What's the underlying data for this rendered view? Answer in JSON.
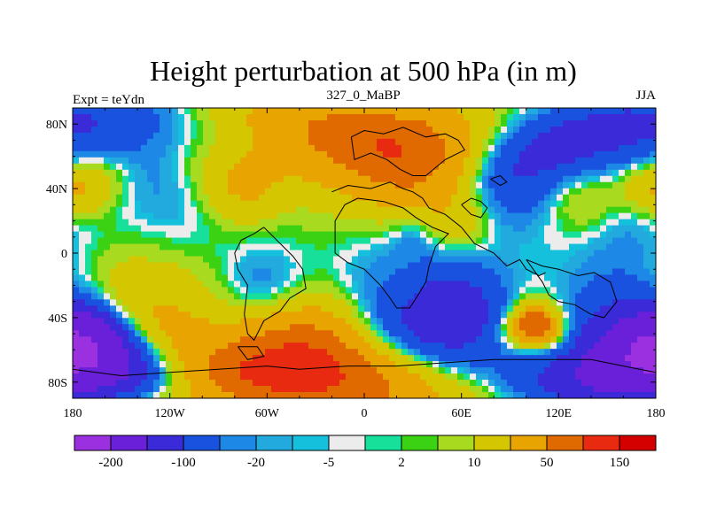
{
  "chart_data": {
    "type": "heatmap",
    "title": "Height perturbation at 500 hPa (in m)",
    "left_label": "Expt = teYdn",
    "center_label": "327_0_MaBP",
    "right_label": "JJA",
    "x_ticks": [
      "180",
      "120W",
      "60W",
      "0",
      "60E",
      "120E",
      "180"
    ],
    "y_ticks": [
      "80N",
      "40N",
      "0",
      "40S",
      "80S"
    ],
    "colorbar": {
      "colors": [
        "#9b30e0",
        "#6a20d8",
        "#3a2ad8",
        "#1a52e0",
        "#1e88e6",
        "#22aade",
        "#14c0dc",
        "#ececec",
        "#16e09a",
        "#3cd214",
        "#a8da20",
        "#d4c600",
        "#e8a400",
        "#e06a00",
        "#e82a10",
        "#d40000"
      ],
      "labels": [
        "-200",
        "-100",
        "-20",
        "-5",
        "2",
        "10",
        "50",
        "150"
      ]
    },
    "fields": [
      {
        "lon": 0,
        "lat": 0,
        "amp": 2,
        "r": 300
      },
      {
        "lon": 0,
        "lat": 45,
        "amp": -30,
        "r": 60
      },
      {
        "lon": 0,
        "lat": -45,
        "amp": -30,
        "r": 60
      },
      {
        "lon": 0,
        "lat": 0,
        "amp": 12,
        "r": 45
      },
      {
        "lon": -30,
        "lat": 10,
        "amp": 14,
        "r": 40
      },
      {
        "lon": -20,
        "lat": 68,
        "amp": 60,
        "r": 42
      },
      {
        "lon": 40,
        "lat": 68,
        "amp": 110,
        "r": 38
      },
      {
        "lon": 20,
        "lat": 55,
        "amp": 50,
        "r": 35
      },
      {
        "lon": 100,
        "lat": 70,
        "amp": -70,
        "r": 35
      },
      {
        "lon": 140,
        "lat": 72,
        "amp": -40,
        "r": 40
      },
      {
        "lon": -120,
        "lat": 78,
        "amp": -25,
        "r": 35
      },
      {
        "lon": -90,
        "lat": 60,
        "amp": 20,
        "r": 30
      },
      {
        "lon": -170,
        "lat": 42,
        "amp": 45,
        "r": 18
      },
      {
        "lon": -75,
        "lat": 40,
        "amp": 45,
        "r": 22
      },
      {
        "lon": 60,
        "lat": 20,
        "amp": 35,
        "r": 20
      },
      {
        "lon": 135,
        "lat": 38,
        "amp": 50,
        "r": 25
      },
      {
        "lon": 175,
        "lat": 38,
        "amp": 30,
        "r": 15
      },
      {
        "lon": 80,
        "lat": 42,
        "amp": -30,
        "r": 25
      },
      {
        "lon": -120,
        "lat": 30,
        "amp": -12,
        "r": 30
      },
      {
        "lon": 160,
        "lat": 10,
        "amp": -15,
        "r": 35
      },
      {
        "lon": 30,
        "lat": 12,
        "amp": -15,
        "r": 12
      },
      {
        "lon": 20,
        "lat": -25,
        "amp": 15,
        "r": 18
      },
      {
        "lon": -140,
        "lat": -60,
        "amp": 80,
        "r": 50
      },
      {
        "lon": -40,
        "lat": -65,
        "amp": 140,
        "r": 35
      },
      {
        "lon": 0,
        "lat": -70,
        "amp": 70,
        "r": 40
      },
      {
        "lon": 105,
        "lat": -45,
        "amp": 150,
        "r": 12
      },
      {
        "lon": 105,
        "lat": -45,
        "amp": 25,
        "r": 22
      },
      {
        "lon": -175,
        "lat": -68,
        "amp": -200,
        "r": 28
      },
      {
        "lon": -170,
        "lat": -50,
        "amp": -70,
        "r": 20
      },
      {
        "lon": 20,
        "lat": -45,
        "amp": -60,
        "r": 30
      },
      {
        "lon": 60,
        "lat": -35,
        "amp": -60,
        "r": 28
      },
      {
        "lon": 160,
        "lat": -55,
        "amp": -80,
        "r": 35
      },
      {
        "lon": -60,
        "lat": -25,
        "amp": -30,
        "r": 25
      },
      {
        "lon": 50,
        "lat": -85,
        "amp": -20,
        "r": 30
      }
    ],
    "coastline": [
      [
        [
          -8,
          72
        ],
        [
          0,
          76
        ],
        [
          12,
          74
        ],
        [
          24,
          78
        ],
        [
          38,
          72
        ],
        [
          50,
          74
        ],
        [
          58,
          70
        ],
        [
          62,
          64
        ],
        [
          50,
          58
        ],
        [
          38,
          48
        ],
        [
          30,
          48
        ],
        [
          22,
          52
        ],
        [
          14,
          58
        ],
        [
          4,
          62
        ],
        [
          -6,
          58
        ],
        [
          -8,
          72
        ]
      ],
      [
        [
          -20,
          38
        ],
        [
          -10,
          42
        ],
        [
          4,
          40
        ],
        [
          16,
          44
        ],
        [
          24,
          40
        ],
        [
          30,
          38
        ],
        [
          36,
          34
        ],
        [
          40,
          28
        ],
        [
          50,
          24
        ],
        [
          60,
          16
        ],
        [
          68,
          6
        ],
        [
          80,
          0
        ],
        [
          88,
          -8
        ],
        [
          96,
          -4
        ],
        [
          100,
          -10
        ],
        [
          108,
          -14
        ],
        [
          112,
          -12
        ]
      ],
      [
        [
          -18,
          14
        ],
        [
          -18,
          0
        ],
        [
          -10,
          -6
        ],
        [
          0,
          -10
        ],
        [
          10,
          -20
        ],
        [
          16,
          -28
        ],
        [
          20,
          -34
        ],
        [
          28,
          -34
        ],
        [
          32,
          -28
        ],
        [
          38,
          -18
        ],
        [
          40,
          -8
        ],
        [
          44,
          4
        ],
        [
          52,
          12
        ],
        [
          42,
          16
        ],
        [
          32,
          22
        ],
        [
          24,
          28
        ],
        [
          12,
          32
        ],
        [
          -4,
          34
        ],
        [
          -12,
          30
        ],
        [
          -18,
          20
        ],
        [
          -18,
          14
        ]
      ],
      [
        [
          60,
          30
        ],
        [
          66,
          34
        ],
        [
          72,
          32
        ],
        [
          76,
          28
        ],
        [
          72,
          22
        ],
        [
          66,
          24
        ],
        [
          60,
          30
        ]
      ],
      [
        [
          78,
          46
        ],
        [
          84,
          48
        ],
        [
          88,
          44
        ],
        [
          84,
          42
        ],
        [
          78,
          46
        ]
      ],
      [
        [
          100,
          -4
        ],
        [
          110,
          -8
        ],
        [
          120,
          -10
        ],
        [
          132,
          -14
        ],
        [
          142,
          -12
        ],
        [
          152,
          -18
        ],
        [
          156,
          -30
        ],
        [
          148,
          -40
        ],
        [
          140,
          -38
        ],
        [
          130,
          -32
        ],
        [
          120,
          -30
        ],
        [
          114,
          -26
        ],
        [
          110,
          -18
        ],
        [
          100,
          -4
        ]
      ],
      [
        [
          -62,
          16
        ],
        [
          -54,
          8
        ],
        [
          -44,
          -2
        ],
        [
          -38,
          -10
        ],
        [
          -36,
          -22
        ],
        [
          -46,
          -28
        ],
        [
          -52,
          -36
        ],
        [
          -62,
          -42
        ],
        [
          -68,
          -54
        ],
        [
          -72,
          -50
        ],
        [
          -74,
          -38
        ],
        [
          -72,
          -20
        ],
        [
          -78,
          -10
        ],
        [
          -80,
          0
        ],
        [
          -76,
          8
        ],
        [
          -68,
          12
        ],
        [
          -62,
          16
        ]
      ],
      [
        [
          -180,
          -72
        ],
        [
          -150,
          -76
        ],
        [
          -120,
          -74
        ],
        [
          -90,
          -72
        ],
        [
          -60,
          -70
        ],
        [
          -40,
          -72
        ],
        [
          -10,
          -70
        ],
        [
          20,
          -70
        ],
        [
          50,
          -68
        ],
        [
          80,
          -66
        ],
        [
          110,
          -66
        ],
        [
          140,
          -66
        ],
        [
          170,
          -72
        ],
        [
          180,
          -74
        ]
      ],
      [
        [
          -78,
          -58
        ],
        [
          -72,
          -66
        ],
        [
          -62,
          -64
        ],
        [
          -66,
          -58
        ],
        [
          -78,
          -58
        ]
      ]
    ]
  }
}
